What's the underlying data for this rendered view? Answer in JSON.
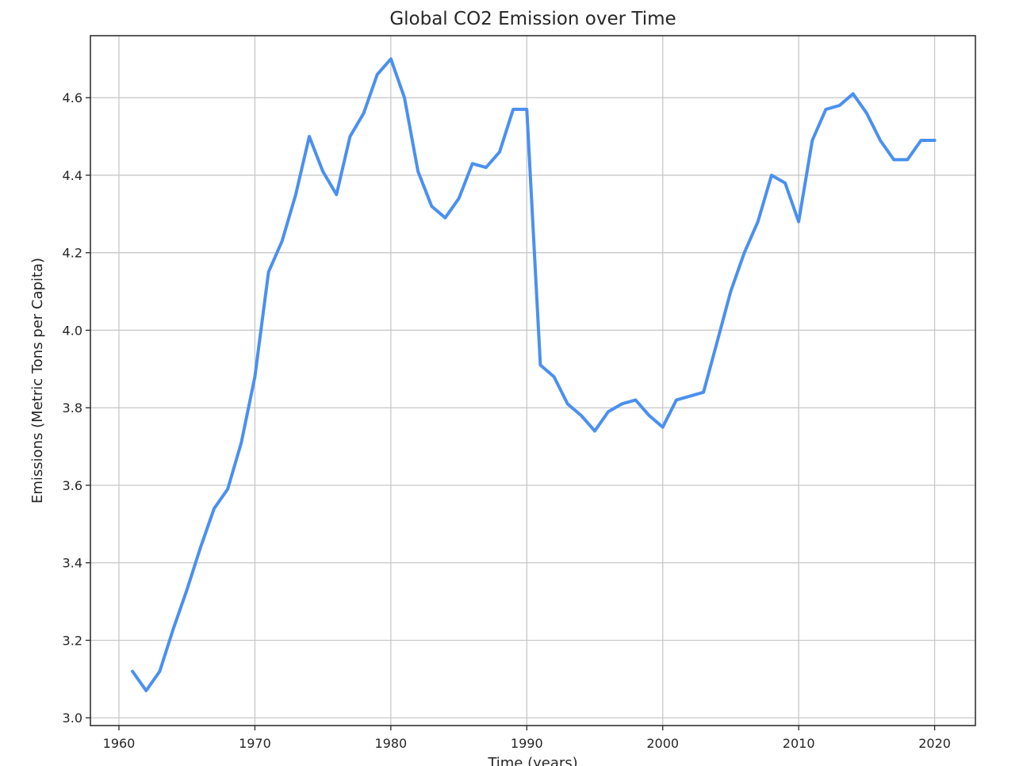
{
  "chart_data": {
    "type": "line",
    "title": "Global CO2 Emission over Time",
    "xlabel": "Time (years)",
    "ylabel": "Emissions (Metric Tons per Capita)",
    "xlim": [
      1957.9,
      1963.0
    ],
    "xlim_note": "",
    "x_range": [
      1957.9,
      2023.0
    ],
    "ylim": [
      2.98,
      4.76
    ],
    "x_ticks": [
      1960,
      1970,
      1980,
      1990,
      2000,
      2010,
      2020
    ],
    "x_tick_labels": [
      "1960",
      "1970",
      "1980",
      "1990",
      "2000",
      "2010",
      "2020"
    ],
    "y_ticks": [
      3.0,
      3.2,
      3.4,
      3.6,
      3.8,
      4.0,
      4.2,
      4.4,
      4.6
    ],
    "y_tick_labels": [
      "3.0",
      "3.2",
      "3.4",
      "3.6",
      "3.8",
      "4.0",
      "4.2",
      "4.4",
      "4.6"
    ],
    "grid": true,
    "colors": {
      "line": "#4a90f0"
    },
    "series": [
      {
        "x": [
          1961,
          1962,
          1963,
          1964,
          1965,
          1966,
          1967,
          1968,
          1969,
          1970,
          1971,
          1972,
          1973,
          1974,
          1975,
          1976,
          1977,
          1978,
          1979,
          1980,
          1981,
          1982,
          1983,
          1984,
          1985,
          1986,
          1987,
          1988,
          1989,
          1990,
          1991,
          1992,
          1993,
          1994,
          1995,
          1996,
          1997,
          1998,
          1999,
          2000,
          2001,
          2002,
          2003,
          2004,
          2005,
          2006,
          2007,
          2008,
          2009,
          2010,
          2011,
          2012,
          2013,
          2014,
          2015,
          2016,
          2017,
          2018,
          2019,
          2020
        ],
        "values": [
          3.12,
          3.07,
          3.12,
          3.23,
          3.33,
          3.44,
          3.54,
          3.59,
          3.71,
          3.88,
          4.15,
          4.23,
          4.35,
          4.5,
          4.41,
          4.35,
          4.5,
          4.56,
          4.66,
          4.7,
          4.6,
          4.41,
          4.32,
          4.29,
          4.34,
          4.43,
          4.42,
          4.46,
          4.57,
          4.57,
          3.91,
          3.88,
          3.81,
          3.78,
          3.74,
          3.79,
          3.81,
          3.82,
          3.78,
          3.75,
          3.82,
          3.83,
          3.84,
          3.97,
          4.1,
          4.2,
          4.28,
          4.4,
          4.38,
          4.28,
          4.49,
          4.57,
          4.58,
          4.61,
          4.56,
          4.49,
          4.44,
          4.44,
          4.49,
          4.49
        ]
      }
    ]
  }
}
